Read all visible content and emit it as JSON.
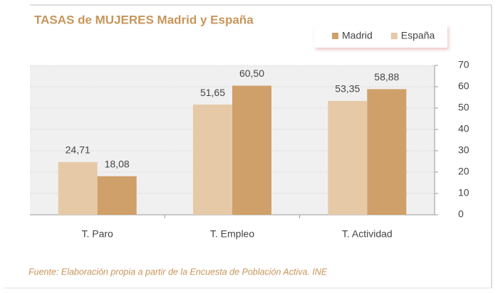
{
  "chart_data": {
    "type": "bar",
    "title": "TASAS de MUJERES Madrid y España",
    "categories": [
      "T. Paro",
      "T. Empleo",
      "T. Actividad"
    ],
    "series": [
      {
        "name": "Madrid",
        "color": "#cfa06a",
        "values": [
          18.08,
          60.5,
          58.88
        ],
        "value_labels": [
          "18,08",
          "60,50",
          "58,88"
        ]
      },
      {
        "name": "España",
        "color": "#e6caa7",
        "values": [
          24.71,
          51.65,
          53.35
        ],
        "value_labels": [
          "24,71",
          "51,65",
          "53,35"
        ]
      }
    ],
    "ylim": [
      0,
      70
    ],
    "yticks": [
      0,
      10,
      20,
      30,
      40,
      50,
      60,
      70
    ],
    "grid": true,
    "legend": "top-right",
    "source": "Fuente: Elaboración propia a partir de la Encuesta de Población Activa. INE"
  }
}
